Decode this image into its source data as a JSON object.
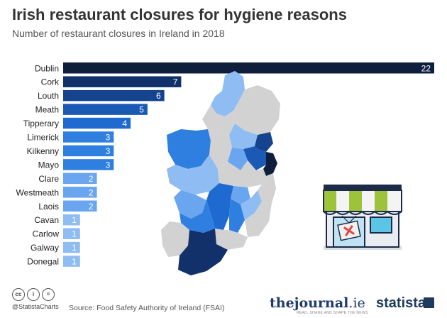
{
  "header": {
    "title": "Irish restaurant closures for hygiene reasons",
    "subtitle": "Number of restaurant closures in Ireland in 2018"
  },
  "chart_data": {
    "type": "bar",
    "orientation": "horizontal",
    "categories": [
      "Dublin",
      "Cork",
      "Louth",
      "Meath",
      "Tipperary",
      "Limerick",
      "Kilkenny",
      "Mayo",
      "Clare",
      "Westmeath",
      "Laois",
      "Cavan",
      "Carlow",
      "Galway",
      "Donegal"
    ],
    "values": [
      22,
      7,
      6,
      5,
      4,
      3,
      3,
      3,
      2,
      2,
      2,
      1,
      1,
      1,
      1
    ],
    "xlim": [
      0,
      22
    ],
    "grid": false,
    "value_labels": true,
    "colors": {
      "22": "#0e1e3b",
      "7": "#12306a",
      "6": "#15438d",
      "5": "#1a59b4",
      "4": "#1f6ad1",
      "3": "#2f7fe0",
      "2": "#6aa6f0",
      "1": "#8fbcf3"
    }
  },
  "map": {
    "colors": [
      "#0e1e3b",
      "#15438d",
      "#1f6ad1",
      "#2f7fe0",
      "#6aa6f0",
      "#8fbcf3",
      "#d2d2d2"
    ]
  },
  "illustration": {
    "icon": "shop-closed-icon"
  },
  "footer": {
    "cc_icons": [
      "cc",
      "i",
      "="
    ],
    "handle": "@StatistaCharts",
    "source": "Source: Food Safety Authority of Ireland (FSAI)",
    "thejournal_main": "thejournal",
    "thejournal_suffix": ".ie",
    "thejournal_tagline": "READ, SHARE AND SHAPE THE NEWS",
    "statista": "statista"
  }
}
